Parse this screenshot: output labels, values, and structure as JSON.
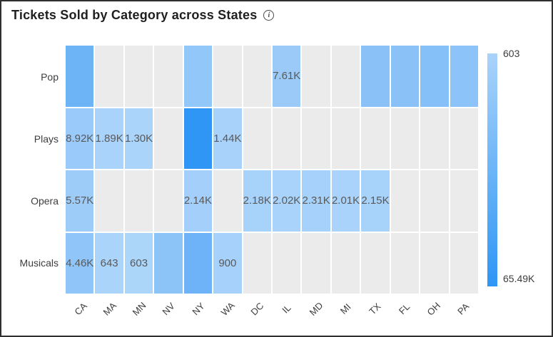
{
  "header": {
    "title": "Tickets Sold by Category across States",
    "info_icon": "i"
  },
  "legend": {
    "top_label": "603",
    "bottom_label": "65.49K",
    "gradient_top_color": "#a9d3fa",
    "gradient_bottom_color": "#2e96f5"
  },
  "chart_data": {
    "type": "heatmap",
    "title": "Tickets Sold by Category across States",
    "x_categories": [
      "CA",
      "MA",
      "MN",
      "NV",
      "NY",
      "WA",
      "DC",
      "IL",
      "MD",
      "MI",
      "TX",
      "FL",
      "OH",
      "PA"
    ],
    "y_categories": [
      "Pop",
      "Plays",
      "Opera",
      "Musicals"
    ],
    "empty_cell_color": "#ebebeb",
    "value_range": {
      "min": 603,
      "max": 65490,
      "min_label": "603",
      "max_label": "65.49K"
    },
    "legend_position": "right",
    "cells": [
      {
        "y": "Pop",
        "x": "CA",
        "label": "",
        "color": "#6db4f7"
      },
      {
        "y": "Pop",
        "x": "NY",
        "label": "",
        "color": "#92c7f9"
      },
      {
        "y": "Pop",
        "x": "IL",
        "label": "7.61K",
        "color": "#9bcaf9"
      },
      {
        "y": "Pop",
        "x": "TX",
        "label": "",
        "color": "#8ac2f8"
      },
      {
        "y": "Pop",
        "x": "FL",
        "label": "",
        "color": "#8ac2f8"
      },
      {
        "y": "Pop",
        "x": "OH",
        "label": "",
        "color": "#86c0f8"
      },
      {
        "y": "Pop",
        "x": "PA",
        "label": "",
        "color": "#8cc3f8"
      },
      {
        "y": "Plays",
        "x": "CA",
        "label": "8.92K",
        "color": "#9acaf9"
      },
      {
        "y": "Plays",
        "x": "MA",
        "label": "1.89K",
        "color": "#a9d3fa"
      },
      {
        "y": "Plays",
        "x": "MN",
        "label": "1.30K",
        "color": "#abd4fa"
      },
      {
        "y": "Plays",
        "x": "NY",
        "label": "",
        "color": "#2f96f5"
      },
      {
        "y": "Plays",
        "x": "WA",
        "label": "1.44K",
        "color": "#a8d2fa"
      },
      {
        "y": "Opera",
        "x": "CA",
        "label": "5.57K",
        "color": "#9dccf9"
      },
      {
        "y": "Opera",
        "x": "NY",
        "label": "2.14K",
        "color": "#a3cffa"
      },
      {
        "y": "Opera",
        "x": "DC",
        "label": "2.18K",
        "color": "#a7d2fa"
      },
      {
        "y": "Opera",
        "x": "IL",
        "label": "2.02K",
        "color": "#a9d3fa"
      },
      {
        "y": "Opera",
        "x": "MD",
        "label": "2.31K",
        "color": "#a5d1fa"
      },
      {
        "y": "Opera",
        "x": "MI",
        "label": "2.01K",
        "color": "#a9d3fa"
      },
      {
        "y": "Opera",
        "x": "TX",
        "label": "2.15K",
        "color": "#a7d2fa"
      },
      {
        "y": "Musicals",
        "x": "CA",
        "label": "4.46K",
        "color": "#8fc5f9"
      },
      {
        "y": "Musicals",
        "x": "MA",
        "label": "643",
        "color": "#abd4fa"
      },
      {
        "y": "Musicals",
        "x": "MN",
        "label": "603",
        "color": "#acd5fa"
      },
      {
        "y": "Musicals",
        "x": "NV",
        "label": "",
        "color": "#8cc4f8"
      },
      {
        "y": "Musicals",
        "x": "NY",
        "label": "",
        "color": "#6eb3f7"
      },
      {
        "y": "Musicals",
        "x": "WA",
        "label": "900",
        "color": "#a6d1fa"
      }
    ]
  }
}
